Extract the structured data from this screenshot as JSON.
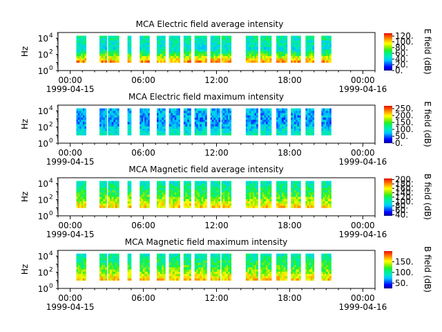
{
  "figure": {
    "colormap": [
      "#00008b",
      "#0000ff",
      "#0060ff",
      "#00c8ff",
      "#00e6c8",
      "#00f08a",
      "#28f028",
      "#a0f000",
      "#ffff00",
      "#ffb000",
      "#ff5a00",
      "#e01000"
    ],
    "time_tick_labels": [
      "00:00",
      "06:00",
      "12:00",
      "18:00",
      "00:00"
    ],
    "date_labels": [
      "1999-04-15",
      "1999-04-16"
    ]
  },
  "chart_data": [
    {
      "type": "heatmap",
      "title": "MCA  Electric field average intensity",
      "xlabel": "",
      "ylabel": "Hz",
      "x_axis": "time (hours since 1999-04-15 00:00)",
      "xlim": [
        0,
        26
      ],
      "xticks": [
        1,
        7,
        13,
        19,
        25
      ],
      "y_scale": "log",
      "ylim": [
        1,
        50000
      ],
      "yticks": [
        {
          "value": 1,
          "label": "10",
          "exp": "0"
        },
        {
          "value": 100,
          "label": "10",
          "exp": "2"
        },
        {
          "value": 10000,
          "label": "10",
          "exp": "4"
        }
      ],
      "colorbar": {
        "label": "E field (dB)",
        "range": [
          0,
          130
        ],
        "ticks": [
          {
            "value": 0,
            "label": "0."
          },
          {
            "value": 20,
            "label": "20."
          },
          {
            "value": 40,
            "label": "40."
          },
          {
            "value": 60,
            "label": "60."
          },
          {
            "value": 80,
            "label": "80."
          },
          {
            "value": 100,
            "label": "100."
          },
          {
            "value": 120,
            "label": "120."
          }
        ]
      },
      "data_blocks": [
        [
          1.5,
          2.3
        ],
        [
          3.4,
          4.0
        ],
        [
          4.1,
          5.0
        ],
        [
          5.7,
          6.0
        ],
        [
          6.7,
          7.5
        ],
        [
          8.1,
          8.8
        ],
        [
          9.1,
          10.0
        ],
        [
          10.3,
          10.9
        ],
        [
          11.2,
          12.2
        ],
        [
          12.5,
          13.3
        ],
        [
          13.4,
          14.2
        ],
        [
          15.4,
          16.4
        ],
        [
          16.6,
          17.5
        ],
        [
          17.9,
          18.8
        ],
        [
          19.1,
          19.9
        ],
        [
          20.3,
          21.0
        ],
        [
          21.6,
          22.4
        ]
      ],
      "freq_range": [
        10,
        20000
      ],
      "value_profile": {
        "low_freq": 110,
        "mid_freq": 45,
        "high_freq": 55
      }
    },
    {
      "type": "heatmap",
      "title": "MCA  Electric field maximum intensity",
      "xlabel": "",
      "ylabel": "Hz",
      "x_axis": "time (hours since 1999-04-15 00:00)",
      "xlim": [
        0,
        26
      ],
      "xticks": [
        1,
        7,
        13,
        19,
        25
      ],
      "y_scale": "log",
      "ylim": [
        1,
        50000
      ],
      "yticks": [
        {
          "value": 1,
          "label": "10",
          "exp": "0"
        },
        {
          "value": 100,
          "label": "10",
          "exp": "2"
        },
        {
          "value": 10000,
          "label": "10",
          "exp": "4"
        }
      ],
      "colorbar": {
        "label": "E field (dB)",
        "range": [
          0,
          270
        ],
        "ticks": [
          {
            "value": 0,
            "label": "0."
          },
          {
            "value": 50,
            "label": "50."
          },
          {
            "value": 100,
            "label": "100."
          },
          {
            "value": 150,
            "label": "150."
          },
          {
            "value": 200,
            "label": "200."
          },
          {
            "value": 250,
            "label": "250."
          }
        ]
      },
      "data_blocks": [
        [
          1.5,
          2.3
        ],
        [
          3.4,
          4.0
        ],
        [
          4.1,
          5.0
        ],
        [
          5.7,
          6.0
        ],
        [
          6.7,
          7.5
        ],
        [
          8.1,
          8.8
        ],
        [
          9.1,
          10.0
        ],
        [
          10.3,
          10.9
        ],
        [
          11.2,
          12.2
        ],
        [
          12.5,
          13.3
        ],
        [
          13.4,
          14.2
        ],
        [
          15.4,
          16.4
        ],
        [
          16.6,
          17.5
        ],
        [
          17.9,
          18.8
        ],
        [
          19.1,
          19.9
        ],
        [
          20.3,
          21.0
        ],
        [
          21.6,
          22.4
        ]
      ],
      "freq_range": [
        10,
        20000
      ],
      "value_profile": {
        "low_freq": 105,
        "mid_freq": 60,
        "high_freq": 75
      }
    },
    {
      "type": "heatmap",
      "title": "MCA  Magnetic field average intensity",
      "xlabel": "",
      "ylabel": "Hz",
      "x_axis": "time (hours since 1999-04-15 00:00)",
      "xlim": [
        0,
        26
      ],
      "xticks": [
        1,
        7,
        13,
        19,
        25
      ],
      "y_scale": "log",
      "ylim": [
        1,
        50000
      ],
      "yticks": [
        {
          "value": 1,
          "label": "10",
          "exp": "0"
        },
        {
          "value": 100,
          "label": "10",
          "exp": "2"
        },
        {
          "value": 10000,
          "label": "10",
          "exp": "4"
        }
      ],
      "colorbar": {
        "label": "B field (dB)",
        "range": [
          35,
          205
        ],
        "ticks": [
          {
            "value": 40,
            "label": "40."
          },
          {
            "value": 60,
            "label": "60."
          },
          {
            "value": 80,
            "label": "80."
          },
          {
            "value": 100,
            "label": "100."
          },
          {
            "value": 120,
            "label": "120."
          },
          {
            "value": 140,
            "label": "140."
          },
          {
            "value": 160,
            "label": "160."
          },
          {
            "value": 180,
            "label": "180."
          },
          {
            "value": 200,
            "label": "200."
          }
        ]
      },
      "data_blocks": [
        [
          1.5,
          2.3
        ],
        [
          3.4,
          4.0
        ],
        [
          4.1,
          5.0
        ],
        [
          5.7,
          6.0
        ],
        [
          6.7,
          7.5
        ],
        [
          8.1,
          8.8
        ],
        [
          9.1,
          10.0
        ],
        [
          10.3,
          10.9
        ],
        [
          11.2,
          12.2
        ],
        [
          12.5,
          13.3
        ],
        [
          13.4,
          14.2
        ],
        [
          15.4,
          16.4
        ],
        [
          16.6,
          17.5
        ],
        [
          17.9,
          18.8
        ],
        [
          19.1,
          19.9
        ],
        [
          20.3,
          21.0
        ],
        [
          21.6,
          22.4
        ]
      ],
      "freq_range": [
        10,
        20000
      ],
      "value_profile": {
        "low_freq": 165,
        "mid_freq": 125,
        "high_freq": 100
      }
    },
    {
      "type": "heatmap",
      "title": "MCA  Magnetic field maximum intensity",
      "xlabel": "",
      "ylabel": "Hz",
      "x_axis": "time (hours since 1999-04-15 00:00)",
      "xlim": [
        0,
        26
      ],
      "xticks": [
        1,
        7,
        13,
        19,
        25
      ],
      "y_scale": "log",
      "ylim": [
        1,
        50000
      ],
      "yticks": [
        {
          "value": 1,
          "label": "10",
          "exp": "0"
        },
        {
          "value": 100,
          "label": "10",
          "exp": "2"
        },
        {
          "value": 10000,
          "label": "10",
          "exp": "4"
        }
      ],
      "colorbar": {
        "label": "B field (dB)",
        "range": [
          25,
          200
        ],
        "ticks": [
          {
            "value": 50,
            "label": "50."
          },
          {
            "value": 100,
            "label": "100."
          },
          {
            "value": 150,
            "label": "150."
          }
        ]
      },
      "data_blocks": [
        [
          1.5,
          2.3
        ],
        [
          3.4,
          4.0
        ],
        [
          4.1,
          5.0
        ],
        [
          5.7,
          6.0
        ],
        [
          6.7,
          7.5
        ],
        [
          8.1,
          8.8
        ],
        [
          9.1,
          10.0
        ],
        [
          10.3,
          10.9
        ],
        [
          11.2,
          12.2
        ],
        [
          12.5,
          13.3
        ],
        [
          13.4,
          14.2
        ],
        [
          15.4,
          16.4
        ],
        [
          16.6,
          17.5
        ],
        [
          17.9,
          18.8
        ],
        [
          19.1,
          19.9
        ],
        [
          20.3,
          21.0
        ],
        [
          21.6,
          22.4
        ]
      ],
      "freq_range": [
        10,
        20000
      ],
      "value_profile": {
        "low_freq": 160,
        "mid_freq": 120,
        "high_freq": 95
      }
    }
  ]
}
